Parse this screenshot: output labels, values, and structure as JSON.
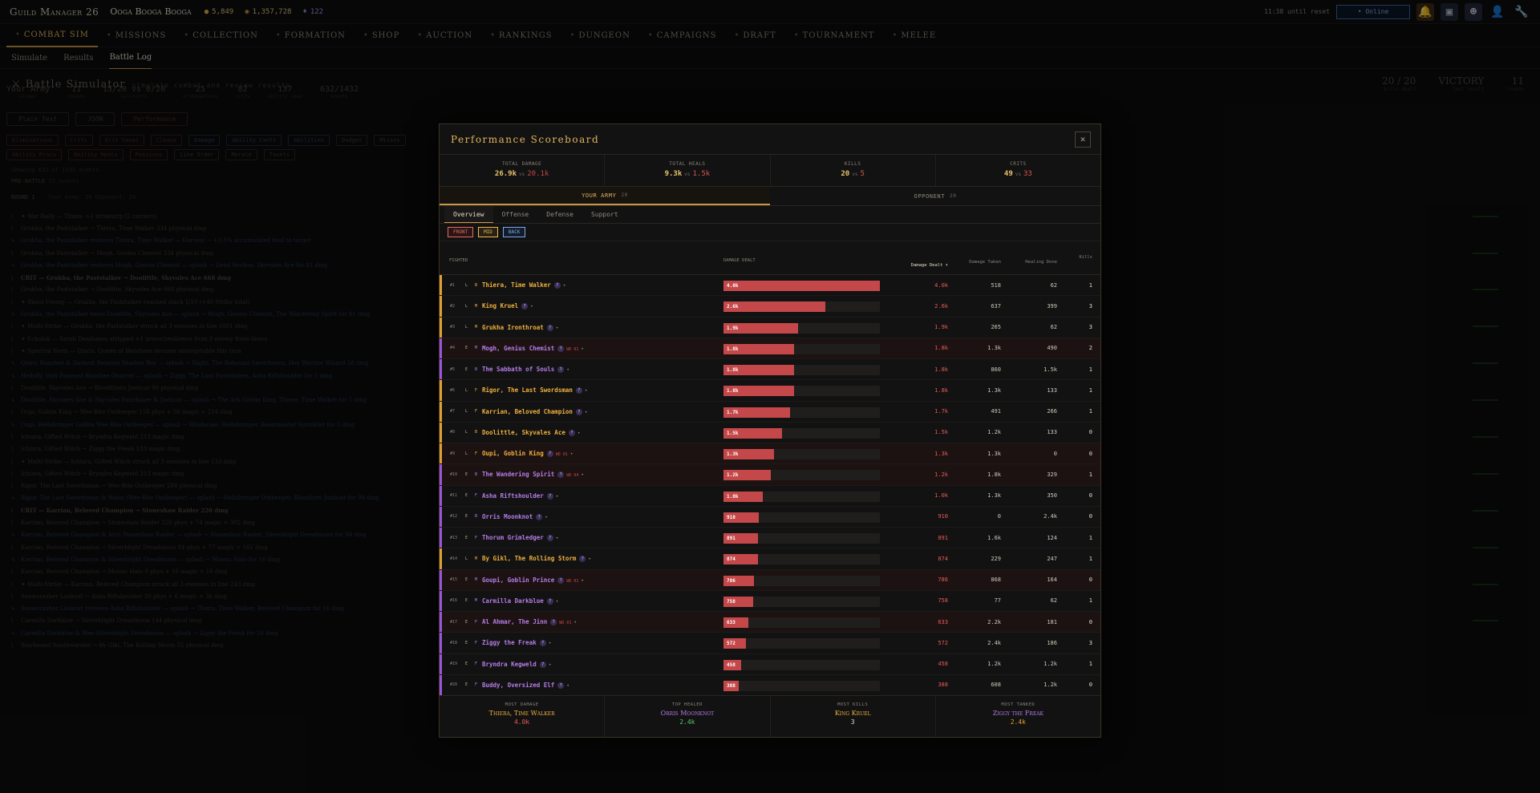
{
  "topbar": {
    "brand": "Guild Manager 26",
    "guild": "Ooga Booga Booga",
    "gold": "5,849",
    "coins": "1,357,728",
    "gems": "122",
    "reset": "11:38 until reset",
    "online": "• Online"
  },
  "nav": [
    "Combat Sim",
    "Missions",
    "Collection",
    "Formation",
    "Shop",
    "Auction",
    "Rankings",
    "Dungeon",
    "Campaigns",
    "Draft",
    "Tournament",
    "Melee"
  ],
  "subnav": [
    "Simulate",
    "Results",
    "Battle Log"
  ],
  "bg": {
    "title": "Battle Simulator",
    "subtitle": "simulate combat and review results",
    "summary": [
      {
        "v": "20 / 20",
        "l": "kills dealt"
      },
      {
        "v": "VICTORY",
        "l": "last result"
      },
      {
        "v": "11",
        "l": "rounds"
      }
    ],
    "stats": [
      {
        "v": "Your Army",
        "l": "winner"
      },
      {
        "v": "11",
        "l": "rounds"
      },
      {
        "v": "15/20 vs 0/20",
        "l": "survivors"
      },
      {
        "v": "25",
        "l": "eliminations"
      },
      {
        "v": "82",
        "l": "crits"
      },
      {
        "v": "137",
        "l": "ability uses"
      },
      {
        "v": "632/1432",
        "l": "events"
      }
    ],
    "ctl1": [
      "Plain Text",
      "JSON",
      "Performance"
    ],
    "filters1": [
      "Eliminations",
      "Crits",
      "Grit Saves",
      "Cleave",
      "Damage",
      "Ability Casts",
      "Abilities",
      "Dodges",
      "Misses"
    ],
    "filters2": [
      "Ability Procs",
      "Ability Heals",
      "Passives",
      "Line Order",
      "Morale",
      "Taunts"
    ],
    "showing": "Showing 632 of 1432 events",
    "prebattle": "PRE-BATTLE",
    "prebattle_sub": "15 events",
    "round": "ROUND 1",
    "round_sub": "Your Army: 20  Opponent: 20",
    "log": [
      {
        "t": "✦ War Rally — Titans: +1 strikes/rp (2 carriers)",
        "k": ""
      },
      {
        "t": "Grukha, the Paststalker → Thiera, Time Walker 334 physical dmg",
        "k": ""
      },
      {
        "t": "Grukha, the Paststalker restores Thiera, Time Walker — Harvest → +0.5% accumulated heal to target",
        "k": "blue"
      },
      {
        "t": "Grukha, the Paststalker → Mogh, Genius Chemist 334 physical dmg",
        "k": ""
      },
      {
        "t": "Grukha, the Paststalker restores Mogh, Genius Chemist — splash → Dead Reckon, Skyvales Ace for 81 dmg",
        "k": "blue"
      },
      {
        "t": "CRIT — Grukha, the Paststalker → Doolittle, Skyvales Ace 668 dmg",
        "k": "bold"
      },
      {
        "t": "Grukha, the Paststalker → Doolittle, Skyvales Ace 668 physical dmg",
        "k": ""
      },
      {
        "t": "✦ Blood Frenzy — Grukha, the Paststalker reached stack 1/10 (+40 Strike total)",
        "k": ""
      },
      {
        "t": "Grukha, the Paststalker heals Doolittle, Skyvales Ace — splash → Mogh, Genius Chemist, The Wandering Spirit for 81 dmg",
        "k": "blue"
      },
      {
        "t": "✦ Multi-Strike — Grukha, the Paststalker struck all 3 enemies in line 1001 dmg",
        "k": ""
      },
      {
        "t": "✦ Echolok — Sarah Deadsmen stripped +1 armor/resilience from 8 enemy front-liners",
        "k": ""
      },
      {
        "t": "✦ Spectral Form — Qiaris, Queen of Banshees became untargetable this turn",
        "k": ""
      },
      {
        "t": "Qiaris Banshee & Darkest Renown Shadow Boy — splash → Night, The Rebound Swordsmen, Hex Warrior Wizard 58 dmg",
        "k": "blue"
      },
      {
        "t": "Hellsfly, Vain Paiseant Banshee Quarrer — splash → Ziggy, The Last Swordsmen, Arka Riftshoulder for 5 dmg",
        "k": "blue"
      },
      {
        "t": "Doolittle, Skyvales Ace → Bloodthorn Justicar 99 physical dmg",
        "k": ""
      },
      {
        "t": "Doolittle, Skyvales Ace & Skyvales Sunchaser & Justicar — splash → The Ark Goblin King, Thiera, Time Walker for 5 dmg",
        "k": "blue"
      },
      {
        "t": "Oupi, Goblin King → Wee-Bite Outkeeper 158 phys + 56 magic = 214 dmg",
        "k": ""
      },
      {
        "t": "Oupi, Hellsbringer Goblin Wee Bite Outkeeper — splash → Windscale, Hellsbringer, Beastmaster Sprinkler for 5 dmg",
        "k": "blue"
      },
      {
        "t": "Ichiara, Gifted Witch → Bryndra Kegweld 213 magic dmg",
        "k": ""
      },
      {
        "t": "Ichiara, Gifted Witch → Ziggy the Freak 133 magic dmg",
        "k": ""
      },
      {
        "t": "✦ Multi-Strike — Ichiara, Gifted Witch struck all 3 enemies in line 133 dmg",
        "k": ""
      },
      {
        "t": "Ichiara, Gifted Witch → Bryndra Kegweld 213 magic dmg",
        "k": ""
      },
      {
        "t": "Rigor, The Last Swordsman → Wee-Bite Outkeeper 284 physical dmg",
        "k": ""
      },
      {
        "t": "Rigor, The Last Swordsman & Waiss (Wee-Bite Outkeeper) — splash → Hellsbringer Outkeeper, Bloodtorn Justicar for 94 dmg",
        "k": "blue"
      },
      {
        "t": "CRIT — Karrian, Beloved Champion → Stoneshaw Raider 226 dmg",
        "k": "bold"
      },
      {
        "t": "Karrian, Beloved Champion → Stoneshaw Raider 226 phys + 74 magic = 302 dmg",
        "k": ""
      },
      {
        "t": "Karrian, Beloved Champion & Arcs Stoneshaw Raider — splash → Stoneshaw Raider, Silverblight Dreadmoon for 94 dmg",
        "k": "blue"
      },
      {
        "t": "Karrian, Beloved Champion → Silverblight Dreadmoon 84 phys + 77 magic = 161 dmg",
        "k": ""
      },
      {
        "t": "Karrian, Beloved Champion & Silverblight Dreadmoon — splash → Mossic Halo for 16 dmg",
        "k": "blue"
      },
      {
        "t": "Karrian, Beloved Champion → Mossic Halo 0 phys + 16 magic = 16 dmg",
        "k": ""
      },
      {
        "t": "✦ Multi-Strike — Karrian, Beloved Champion struck all 3 enemies in line 243 dmg",
        "k": ""
      },
      {
        "t": "Snowcrasher Lookout → Asha Riftshoulder 30 phys + 6 magic = 36 dmg",
        "k": ""
      },
      {
        "t": "Snowcrasher Lookout restores Asha Riftshoulder — splash → Thiera, Time Walker, Beloved Champion for 16 dmg",
        "k": "blue"
      },
      {
        "t": "Carmilla Darkblue → Silverblight Dreadmoon 144 physical dmg",
        "k": ""
      },
      {
        "t": "Carmilla Darkblue & Wee-Silverblight Dreadmoon — splash → Ziggy the Freak for 26 dmg",
        "k": "blue"
      },
      {
        "t": "Slayhound Southwarden → By Gikl, The Rolling Storm 55 physical dmg",
        "k": ""
      }
    ]
  },
  "modal": {
    "title": "Performance Scoreboard",
    "close": "✕",
    "kpis": [
      {
        "label": "TOTAL DAMAGE",
        "you": "26.9k",
        "vs": "vs",
        "opp": "20.1k"
      },
      {
        "label": "TOTAL HEALS",
        "you": "9.3k",
        "vs": "vs",
        "opp": "1.5k"
      },
      {
        "label": "KILLS",
        "you": "20",
        "vs": "vs",
        "opp": "5"
      },
      {
        "label": "CRITS",
        "you": "49",
        "vs": "vs",
        "opp": "33"
      }
    ],
    "sides": [
      {
        "label": "YOUR ARMY",
        "count": "20"
      },
      {
        "label": "OPPONENT",
        "count": "20"
      }
    ],
    "tabs": [
      "Overview",
      "Offense",
      "Defense",
      "Support"
    ],
    "filters": [
      "FRONT",
      "MID",
      "BACK"
    ],
    "headers": {
      "fighter": "FIGHTER",
      "damage_dealt": "DAMAGE DEALT",
      "damage_col": "Damage Dealt ▾",
      "taken": "Damage Taken",
      "healing": "Healing Done",
      "kills": "Kills"
    },
    "max_damage": 4000,
    "rows": [
      {
        "rank": "#1",
        "rarity": "L",
        "cls": "B",
        "name": "Thiera, Time Walker",
        "color": "#f0b13c",
        "edge": "#e0a030",
        "badge": "?",
        "ms": "",
        "dmg": 4000,
        "label": "4.0k",
        "taken": "518",
        "healing": "62",
        "kills": "1"
      },
      {
        "rank": "#2",
        "rarity": "L",
        "cls": "M",
        "name": "King Kruel",
        "color": "#f0b13c",
        "edge": "#e0a030",
        "badge": "?",
        "ms": "",
        "dmg": 2600,
        "label": "2.6k",
        "taken": "637",
        "healing": "399",
        "kills": "3"
      },
      {
        "rank": "#3",
        "rarity": "L",
        "cls": "M",
        "name": "Grukha Ironthroat",
        "color": "#f0b13c",
        "edge": "#e0a030",
        "badge": "?",
        "ms": "",
        "dmg": 1900,
        "label": "1.9k",
        "taken": "265",
        "healing": "62",
        "kills": "3"
      },
      {
        "rank": "#4",
        "rarity": "E",
        "cls": "M",
        "name": "Mogh, Genius Chemist",
        "color": "#b77de8",
        "edge": "#9a55d8",
        "badge": "?",
        "ms": "WD 01",
        "dmg": 1800,
        "label": "1.8k",
        "taken": "1.3k",
        "healing": "490",
        "kills": "2",
        "hl": true
      },
      {
        "rank": "#5",
        "rarity": "E",
        "cls": "B",
        "name": "The Sabbath of Souls",
        "color": "#b77de8",
        "edge": "#9a55d8",
        "badge": "?",
        "ms": "",
        "dmg": 1800,
        "label": "1.8k",
        "taken": "860",
        "healing": "1.5k",
        "kills": "1"
      },
      {
        "rank": "#6",
        "rarity": "L",
        "cls": "F",
        "name": "Rigor, The Last Swordsman",
        "color": "#f0b13c",
        "edge": "#e0a030",
        "badge": "?",
        "ms": "",
        "dmg": 1800,
        "label": "1.8k",
        "taken": "1.3k",
        "healing": "133",
        "kills": "1"
      },
      {
        "rank": "#7",
        "rarity": "L",
        "cls": "F",
        "name": "Karrian, Beloved Champion",
        "color": "#f0b13c",
        "edge": "#e0a030",
        "badge": "?",
        "ms": "",
        "dmg": 1700,
        "label": "1.7k",
        "taken": "491",
        "healing": "266",
        "kills": "1"
      },
      {
        "rank": "#8",
        "rarity": "L",
        "cls": "B",
        "name": "Doolittle, Skyvales Ace",
        "color": "#f0b13c",
        "edge": "#e0a030",
        "badge": "?",
        "ms": "",
        "dmg": 1500,
        "label": "1.5k",
        "taken": "1.2k",
        "healing": "133",
        "kills": "0"
      },
      {
        "rank": "#9",
        "rarity": "L",
        "cls": "F",
        "name": "Oupi, Goblin King",
        "color": "#f0b13c",
        "edge": "#e0a030",
        "badge": "?",
        "ms": "WD 01",
        "dmg": 1300,
        "label": "1.3k",
        "taken": "1.3k",
        "healing": "0",
        "kills": "0",
        "hl": true
      },
      {
        "rank": "#10",
        "rarity": "E",
        "cls": "B",
        "name": "The Wandering Spirit",
        "color": "#b77de8",
        "edge": "#9a55d8",
        "badge": "?",
        "ms": "WD 04",
        "dmg": 1200,
        "label": "1.2k",
        "taken": "1.8k",
        "healing": "329",
        "kills": "1",
        "hl": true
      },
      {
        "rank": "#11",
        "rarity": "E",
        "cls": "F",
        "name": "Asha Riftshoulder",
        "color": "#b77de8",
        "edge": "#9a55d8",
        "badge": "?",
        "ms": "",
        "dmg": 1000,
        "label": "1.0k",
        "taken": "1.3k",
        "healing": "350",
        "kills": "0"
      },
      {
        "rank": "#12",
        "rarity": "E",
        "cls": "B",
        "name": "Orris Moonknot",
        "color": "#b77de8",
        "edge": "#9a55d8",
        "badge": "?",
        "ms": "",
        "dmg": 910,
        "label": "910",
        "taken": "0",
        "healing": "2.4k",
        "kills": "0"
      },
      {
        "rank": "#13",
        "rarity": "E",
        "cls": "F",
        "name": "Thorum Grimledger",
        "color": "#b77de8",
        "edge": "#9a55d8",
        "badge": "?",
        "ms": "",
        "dmg": 891,
        "label": "891",
        "taken": "1.6k",
        "healing": "124",
        "kills": "1"
      },
      {
        "rank": "#14",
        "rarity": "L",
        "cls": "M",
        "name": "By Gikl, The Rolling Storm",
        "color": "#f0b13c",
        "edge": "#e0a030",
        "badge": "?",
        "ms": "",
        "dmg": 874,
        "label": "874",
        "taken": "229",
        "healing": "247",
        "kills": "1"
      },
      {
        "rank": "#15",
        "rarity": "E",
        "cls": "M",
        "name": "Goupi, Goblin Prince",
        "color": "#b77de8",
        "edge": "#9a55d8",
        "badge": "?",
        "ms": "WD 01",
        "dmg": 786,
        "label": "786",
        "taken": "868",
        "healing": "164",
        "kills": "0",
        "hl": true
      },
      {
        "rank": "#16",
        "rarity": "E",
        "cls": "M",
        "name": "Carmilla Darkblue",
        "color": "#b77de8",
        "edge": "#9a55d8",
        "badge": "?",
        "ms": "",
        "dmg": 758,
        "label": "758",
        "taken": "77",
        "healing": "62",
        "kills": "1"
      },
      {
        "rank": "#17",
        "rarity": "E",
        "cls": "F",
        "name": "Al Ahmar, The Jinn",
        "color": "#b77de8",
        "edge": "#9a55d8",
        "badge": "?",
        "ms": "WD 01",
        "dmg": 633,
        "label": "633",
        "taken": "2.2k",
        "healing": "181",
        "kills": "0",
        "hl": true
      },
      {
        "rank": "#18",
        "rarity": "E",
        "cls": "F",
        "name": "Ziggy the Freak",
        "color": "#b77de8",
        "edge": "#9a55d8",
        "badge": "?",
        "ms": "",
        "dmg": 572,
        "label": "572",
        "taken": "2.4k",
        "healing": "186",
        "kills": "3"
      },
      {
        "rank": "#19",
        "rarity": "E",
        "cls": "F",
        "name": "Bryndra Kegweld",
        "color": "#b77de8",
        "edge": "#9a55d8",
        "badge": "?",
        "ms": "",
        "dmg": 458,
        "label": "458",
        "taken": "1.2k",
        "healing": "1.2k",
        "kills": "1"
      },
      {
        "rank": "#20",
        "rarity": "E",
        "cls": "F",
        "name": "Buddy, Oversized Elf",
        "color": "#b77de8",
        "edge": "#9a55d8",
        "badge": "?",
        "ms": "",
        "dmg": 388,
        "label": "388",
        "taken": "608",
        "healing": "1.2k",
        "kills": "0"
      }
    ],
    "footer": [
      {
        "label": "MOST DAMAGE",
        "name": "Thiera, Time Walker",
        "value": "4.0k",
        "ncolor": "#f0b13c",
        "vcolor": "#e85a54"
      },
      {
        "label": "TOP HEALER",
        "name": "Orris Moonknot",
        "value": "2.4k",
        "ncolor": "#b77de8",
        "vcolor": "#5dc46b"
      },
      {
        "label": "MOST KILLS",
        "name": "King Kruel",
        "value": "3",
        "ncolor": "#f0b13c",
        "vcolor": "#e2dccc"
      },
      {
        "label": "MOST TANKED",
        "name": "Ziggy the Freak",
        "value": "2.4k",
        "ncolor": "#b77de8",
        "vcolor": "#e0a030"
      }
    ]
  },
  "colors": {
    "accent": "#e0b45c",
    "damage": "#c4484a",
    "legendary": "#f0b13c",
    "epic": "#b77de8"
  }
}
